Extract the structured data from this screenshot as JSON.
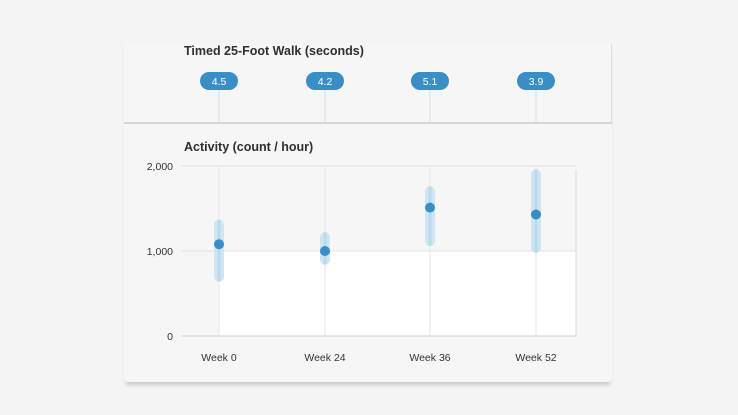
{
  "walk": {
    "title": "Timed 25-Foot Walk (seconds)",
    "values": [
      "4.5",
      "4.2",
      "5.1",
      "3.9"
    ]
  },
  "activity": {
    "title": "Activity (count / hour)"
  },
  "chart_data": {
    "type": "scatter",
    "title": "Activity (count / hour)",
    "categories": [
      "Week 0",
      "Week 24",
      "Week 36",
      "Week 52"
    ],
    "series": [
      {
        "values": [
          1080,
          1000,
          1510,
          1430
        ],
        "low": [
          640,
          840,
          1060,
          980
        ],
        "high": [
          1370,
          1220,
          1760,
          1960
        ]
      }
    ],
    "ylim": [
      0,
      2000
    ],
    "yticks": [
      0,
      1000,
      2000
    ],
    "ytick_labels": [
      "0",
      "1,000",
      "2,000"
    ],
    "grid": true,
    "colors": {
      "point": "#3a8ec6",
      "range": "#cfe6f2",
      "range_inner": "#b8dbee"
    }
  }
}
